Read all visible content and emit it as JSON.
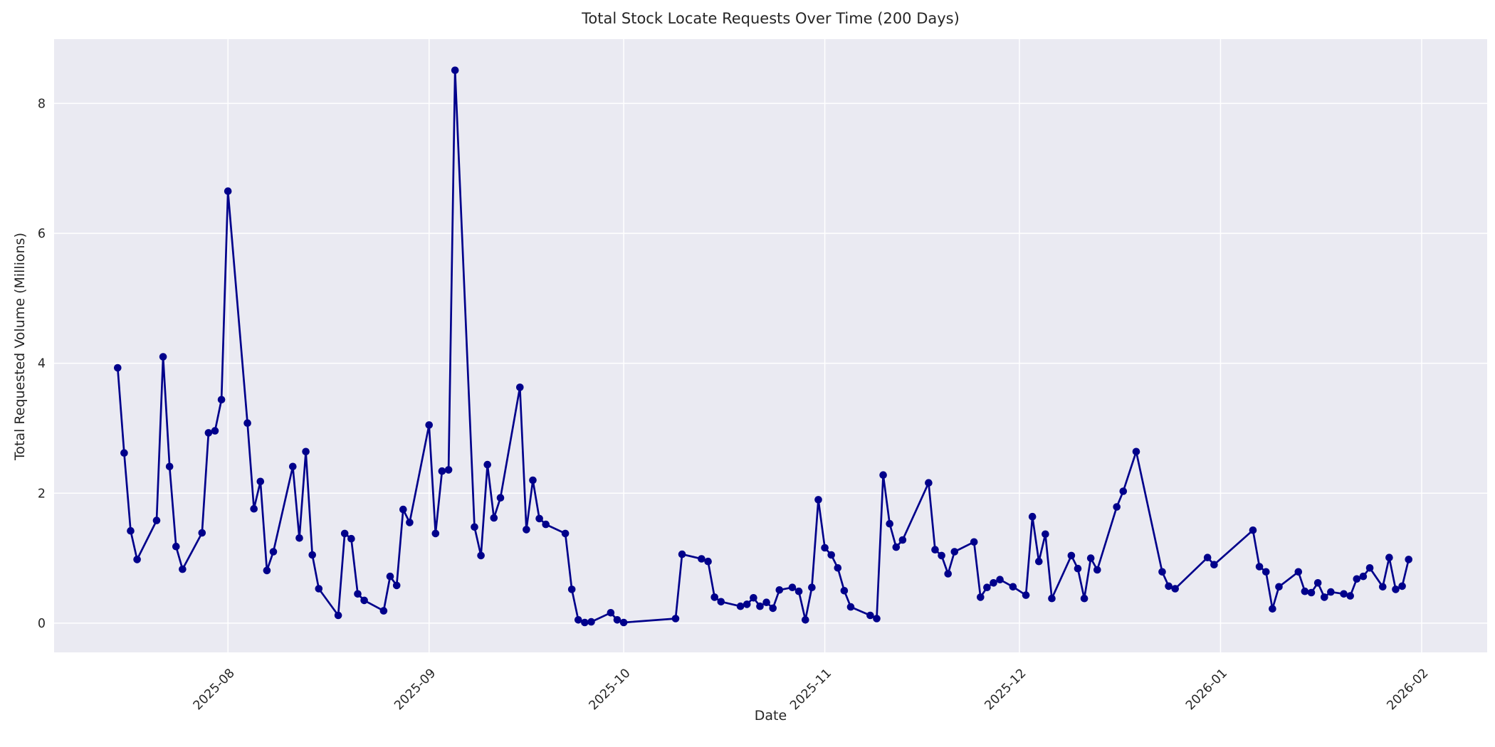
{
  "figure": {
    "title": "Total Stock Locate Requests Over Time (200 Days)",
    "background_color": "#ffffff"
  },
  "chart_data": {
    "type": "line",
    "title": "Total Stock Locate Requests Over Time (200 Days)",
    "xlabel": "Date",
    "ylabel": "Total Requested Volume (Millions)",
    "legend": null,
    "grid": true,
    "plot_background_color": "#eaeaf2",
    "grid_color": "#ffffff",
    "line_color": "#00008b",
    "marker": "o",
    "start_date": "2025-07-15",
    "x_unit": "days_since_start_date",
    "x_ticks": [
      {
        "day": 17,
        "label": "2025-08"
      },
      {
        "day": 48,
        "label": "2025-09"
      },
      {
        "day": 78,
        "label": "2025-10"
      },
      {
        "day": 109,
        "label": "2025-11"
      },
      {
        "day": 139,
        "label": "2025-12"
      },
      {
        "day": 170,
        "label": "2026-01"
      },
      {
        "day": 201,
        "label": "2026-02"
      }
    ],
    "y_ticks": [
      0,
      2,
      4,
      6,
      8
    ],
    "xlim_days": [
      -9.8,
      211.1
    ],
    "ylim": [
      -0.45,
      8.99
    ],
    "points": [
      [
        0,
        3.93
      ],
      [
        1,
        2.62
      ],
      [
        2,
        1.42
      ],
      [
        3,
        0.98
      ],
      [
        6,
        1.58
      ],
      [
        7,
        4.1
      ],
      [
        8,
        2.41
      ],
      [
        9,
        1.18
      ],
      [
        10,
        0.83
      ],
      [
        13,
        1.39
      ],
      [
        14,
        2.93
      ],
      [
        15,
        2.96
      ],
      [
        16,
        3.44
      ],
      [
        17,
        6.65
      ],
      [
        20,
        3.08
      ],
      [
        21,
        1.76
      ],
      [
        22,
        2.18
      ],
      [
        23,
        0.81
      ],
      [
        24,
        1.1
      ],
      [
        27,
        2.41
      ],
      [
        28,
        1.31
      ],
      [
        29,
        2.64
      ],
      [
        30,
        1.05
      ],
      [
        31,
        0.53
      ],
      [
        34,
        0.12
      ],
      [
        35,
        1.38
      ],
      [
        36,
        1.3
      ],
      [
        37,
        0.45
      ],
      [
        38,
        0.35
      ],
      [
        41,
        0.19
      ],
      [
        42,
        0.72
      ],
      [
        43,
        0.58
      ],
      [
        44,
        1.75
      ],
      [
        45,
        1.55
      ],
      [
        48,
        3.05
      ],
      [
        49,
        1.38
      ],
      [
        50,
        2.34
      ],
      [
        51,
        2.36
      ],
      [
        52,
        8.51
      ],
      [
        55,
        1.48
      ],
      [
        56,
        1.04
      ],
      [
        57,
        2.44
      ],
      [
        58,
        1.62
      ],
      [
        59,
        1.93
      ],
      [
        62,
        3.63
      ],
      [
        63,
        1.44
      ],
      [
        64,
        2.2
      ],
      [
        65,
        1.61
      ],
      [
        66,
        1.52
      ],
      [
        69,
        1.38
      ],
      [
        70,
        0.52
      ],
      [
        71,
        0.05
      ],
      [
        72,
        0.01
      ],
      [
        73,
        0.02
      ],
      [
        76,
        0.16
      ],
      [
        77,
        0.05
      ],
      [
        78,
        0.01
      ],
      [
        86,
        0.07
      ],
      [
        87,
        1.06
      ],
      [
        90,
        0.99
      ],
      [
        91,
        0.95
      ],
      [
        92,
        0.4
      ],
      [
        93,
        0.33
      ],
      [
        96,
        0.26
      ],
      [
        97,
        0.29
      ],
      [
        98,
        0.39
      ],
      [
        99,
        0.26
      ],
      [
        100,
        0.32
      ],
      [
        101,
        0.23
      ],
      [
        102,
        0.51
      ],
      [
        104,
        0.55
      ],
      [
        105,
        0.49
      ],
      [
        106,
        0.05
      ],
      [
        107,
        0.55
      ],
      [
        108,
        1.9
      ],
      [
        109,
        1.16
      ],
      [
        110,
        1.05
      ],
      [
        111,
        0.85
      ],
      [
        112,
        0.5
      ],
      [
        113,
        0.25
      ],
      [
        116,
        0.12
      ],
      [
        117,
        0.07
      ],
      [
        118,
        2.28
      ],
      [
        119,
        1.53
      ],
      [
        120,
        1.17
      ],
      [
        121,
        1.28
      ],
      [
        125,
        2.16
      ],
      [
        126,
        1.13
      ],
      [
        127,
        1.04
      ],
      [
        128,
        0.76
      ],
      [
        129,
        1.1
      ],
      [
        132,
        1.25
      ],
      [
        133,
        0.4
      ],
      [
        134,
        0.55
      ],
      [
        135,
        0.62
      ],
      [
        136,
        0.67
      ],
      [
        138,
        0.56
      ],
      [
        140,
        0.43
      ],
      [
        141,
        1.64
      ],
      [
        142,
        0.95
      ],
      [
        143,
        1.37
      ],
      [
        144,
        0.38
      ],
      [
        147,
        1.04
      ],
      [
        148,
        0.84
      ],
      [
        149,
        0.38
      ],
      [
        150,
        1.0
      ],
      [
        151,
        0.82
      ],
      [
        154,
        1.79
      ],
      [
        155,
        2.03
      ],
      [
        157,
        2.64
      ],
      [
        161,
        0.79
      ],
      [
        162,
        0.57
      ],
      [
        163,
        0.53
      ],
      [
        168,
        1.01
      ],
      [
        169,
        0.9
      ],
      [
        175,
        1.43
      ],
      [
        176,
        0.87
      ],
      [
        177,
        0.79
      ],
      [
        178,
        0.22
      ],
      [
        179,
        0.56
      ],
      [
        182,
        0.79
      ],
      [
        183,
        0.49
      ],
      [
        184,
        0.47
      ],
      [
        185,
        0.62
      ],
      [
        186,
        0.4
      ],
      [
        187,
        0.48
      ],
      [
        189,
        0.45
      ],
      [
        190,
        0.42
      ],
      [
        191,
        0.68
      ],
      [
        192,
        0.72
      ],
      [
        193,
        0.85
      ],
      [
        195,
        0.56
      ],
      [
        196,
        1.01
      ],
      [
        197,
        0.52
      ],
      [
        198,
        0.57
      ],
      [
        199,
        0.98
      ]
    ]
  }
}
